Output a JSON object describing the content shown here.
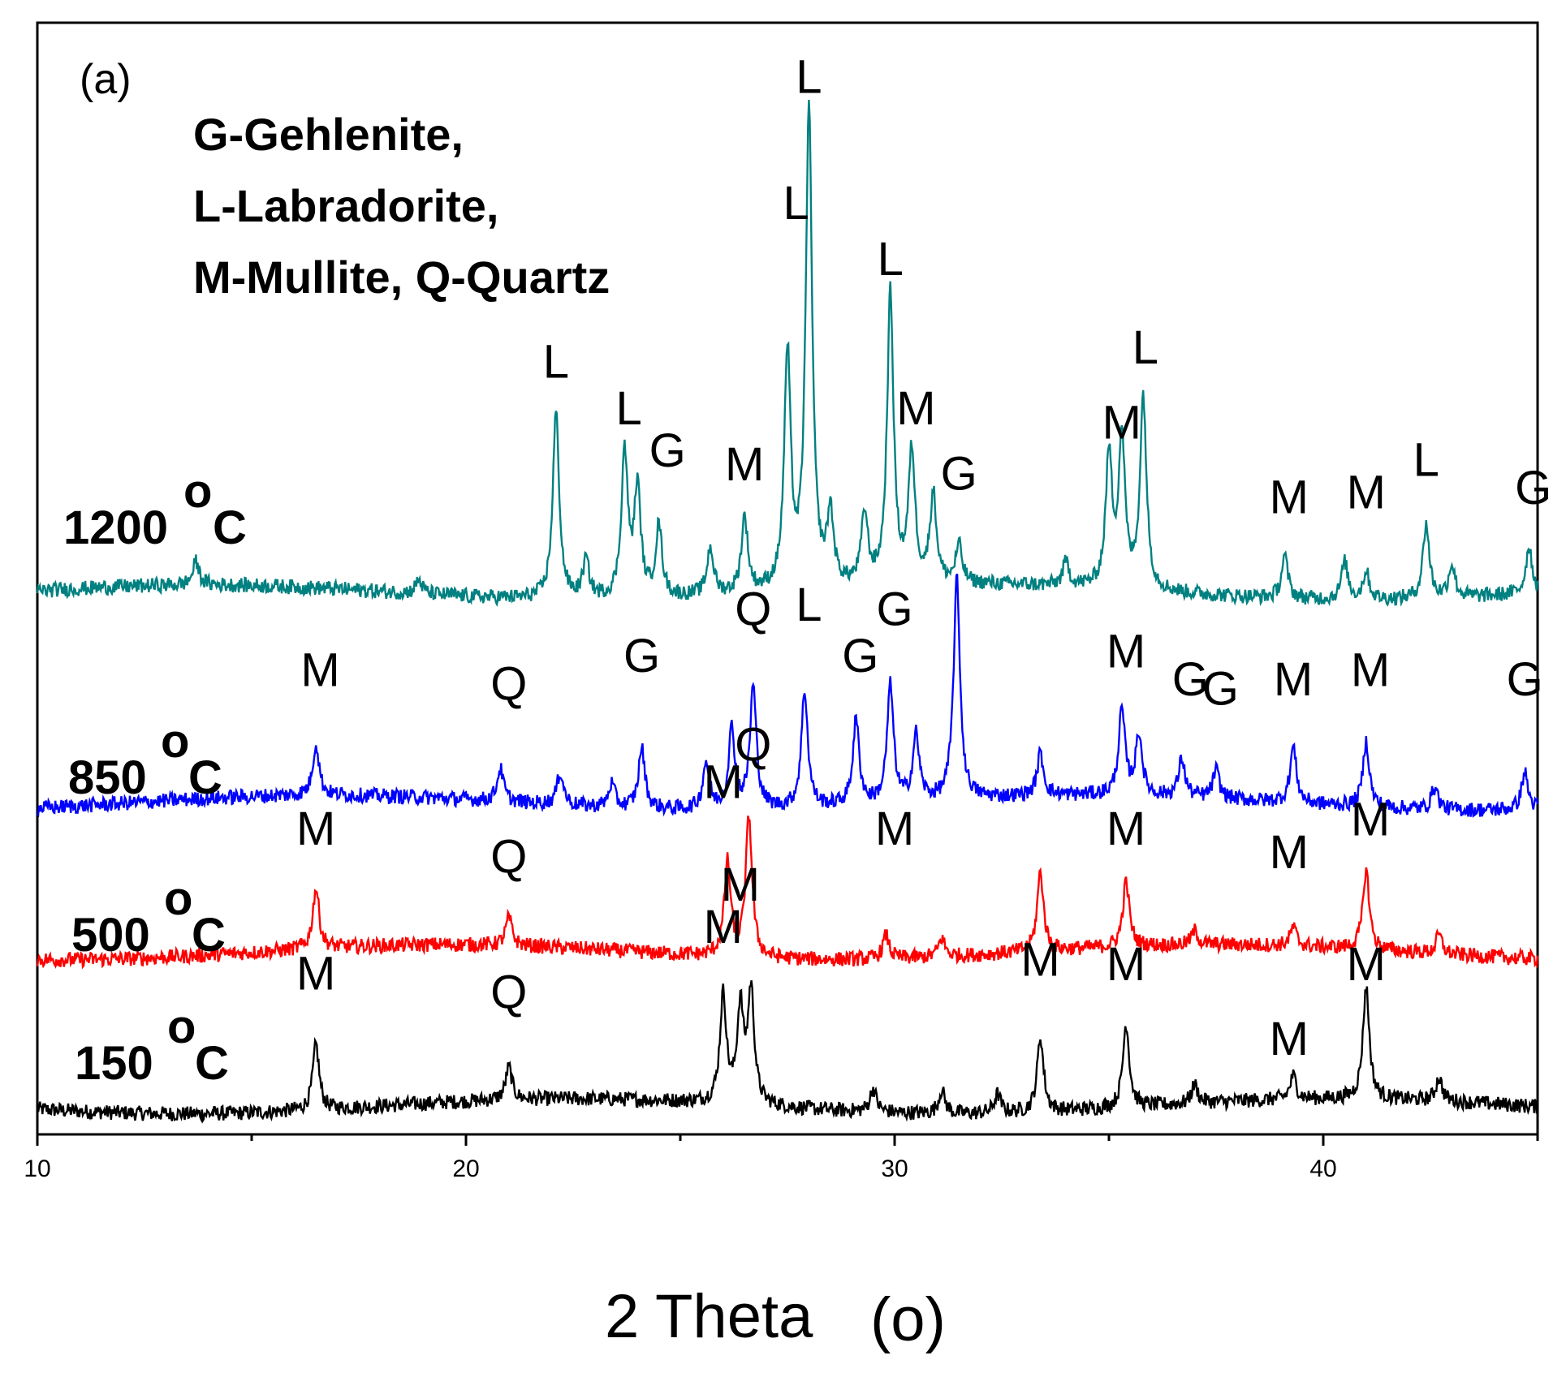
{
  "chart_data": {
    "type": "line",
    "title": "",
    "panel_label": "(a)",
    "xlabel": "2 Theta",
    "xlabel_unit": "(o)",
    "xlim": [
      10,
      45
    ],
    "x_ticks": [
      10,
      20,
      30,
      40
    ],
    "y_axis_visible": false,
    "legend": {
      "position": "top-left",
      "lines": [
        "G-Gehlenite,",
        "L-Labradorite,",
        "M-Mullite, Q-Quartz"
      ]
    },
    "series": [
      {
        "name": "150°C",
        "label_main": "150",
        "label_unit": "C",
        "label_degree": "o",
        "color": "#000000",
        "baseline": 0,
        "peaks": [
          {
            "x": 16.5,
            "h": 14
          },
          {
            "x": 21.0,
            "h": 7
          },
          {
            "x": 26.0,
            "h": 23
          },
          {
            "x": 26.4,
            "h": 20
          },
          {
            "x": 26.65,
            "h": 24
          },
          {
            "x": 29.5,
            "h": 5
          },
          {
            "x": 31.1,
            "h": 5
          },
          {
            "x": 32.4,
            "h": 4
          },
          {
            "x": 33.4,
            "h": 16
          },
          {
            "x": 35.4,
            "h": 18
          },
          {
            "x": 37.0,
            "h": 4
          },
          {
            "x": 39.3,
            "h": 5
          },
          {
            "x": 41.0,
            "h": 24
          },
          {
            "x": 42.7,
            "h": 5
          }
        ],
        "annotations": [
          {
            "text": "M",
            "x": 16.5,
            "y": 25
          },
          {
            "text": "Q",
            "x": 21.0,
            "y": 21
          },
          {
            "text": "M",
            "x": 26.0,
            "y": 35
          },
          {
            "text": "M",
            "x": 33.4,
            "y": 28
          },
          {
            "text": "M",
            "x": 35.4,
            "y": 27
          },
          {
            "text": "M",
            "x": 39.2,
            "y": 11
          },
          {
            "text": "M",
            "x": 41.0,
            "y": 27
          }
        ]
      },
      {
        "name": "500°C",
        "label_main": "500",
        "label_unit": "C",
        "label_degree": "o",
        "color": "#ff0000",
        "baseline": 33,
        "peaks": [
          {
            "x": 16.5,
            "h": 13
          },
          {
            "x": 21.0,
            "h": 6
          },
          {
            "x": 26.1,
            "h": 20
          },
          {
            "x": 26.6,
            "h": 30
          },
          {
            "x": 29.8,
            "h": 5
          },
          {
            "x": 31.1,
            "h": 4
          },
          {
            "x": 33.4,
            "h": 17
          },
          {
            "x": 35.4,
            "h": 14
          },
          {
            "x": 37.0,
            "h": 3
          },
          {
            "x": 39.3,
            "h": 4
          },
          {
            "x": 41.0,
            "h": 17
          },
          {
            "x": 42.7,
            "h": 4
          }
        ],
        "annotations": [
          {
            "text": "M",
            "x": 16.5,
            "y": 56
          },
          {
            "text": "Q",
            "x": 21.0,
            "y": 50
          },
          {
            "text": "M",
            "x": 26.0,
            "y": 66
          },
          {
            "text": "Q",
            "x": 26.7,
            "y": 74
          },
          {
            "text": "M",
            "x": 26.4,
            "y": 44
          },
          {
            "text": "M",
            "x": 30.0,
            "y": 56
          },
          {
            "text": "M",
            "x": 35.4,
            "y": 56
          },
          {
            "text": "M",
            "x": 39.2,
            "y": 51
          },
          {
            "text": "M",
            "x": 41.1,
            "y": 58
          }
        ]
      },
      {
        "name": "850°C",
        "label_main": "850",
        "label_unit": "C",
        "label_degree": "o",
        "color": "#0000ff",
        "baseline": 65,
        "peaks": [
          {
            "x": 16.5,
            "h": 11
          },
          {
            "x": 20.8,
            "h": 7
          },
          {
            "x": 22.2,
            "h": 7
          },
          {
            "x": 23.4,
            "h": 5
          },
          {
            "x": 24.1,
            "h": 13
          },
          {
            "x": 25.6,
            "h": 10
          },
          {
            "x": 26.2,
            "h": 17
          },
          {
            "x": 26.7,
            "h": 26
          },
          {
            "x": 27.9,
            "h": 25
          },
          {
            "x": 29.1,
            "h": 18
          },
          {
            "x": 29.9,
            "h": 25
          },
          {
            "x": 30.5,
            "h": 14
          },
          {
            "x": 31.45,
            "h": 47
          },
          {
            "x": 33.4,
            "h": 9
          },
          {
            "x": 35.3,
            "h": 18
          },
          {
            "x": 35.7,
            "h": 13
          },
          {
            "x": 36.7,
            "h": 8
          },
          {
            "x": 37.5,
            "h": 6
          },
          {
            "x": 39.3,
            "h": 12
          },
          {
            "x": 41.0,
            "h": 14
          },
          {
            "x": 42.6,
            "h": 5
          },
          {
            "x": 44.7,
            "h": 8
          }
        ],
        "annotations": [
          {
            "text": "M",
            "x": 16.6,
            "y": 90
          },
          {
            "text": "Q",
            "x": 21.0,
            "y": 87
          },
          {
            "text": "G",
            "x": 24.1,
            "y": 93
          },
          {
            "text": "Q",
            "x": 26.7,
            "y": 103
          },
          {
            "text": "L",
            "x": 28.0,
            "y": 104
          },
          {
            "text": "G",
            "x": 29.2,
            "y": 93
          },
          {
            "text": "G",
            "x": 30.0,
            "y": 103
          },
          {
            "text": "M",
            "x": 35.4,
            "y": 94
          },
          {
            "text": "G",
            "x": 36.9,
            "y": 88
          },
          {
            "text": "G",
            "x": 37.6,
            "y": 86
          },
          {
            "text": "M",
            "x": 39.3,
            "y": 88
          },
          {
            "text": "M",
            "x": 41.1,
            "y": 90
          },
          {
            "text": "G",
            "x": 44.7,
            "y": 88
          }
        ]
      },
      {
        "name": "1200°C",
        "label_main": "1200",
        "label_unit": "C",
        "label_degree": "o",
        "color": "#008080",
        "baseline": 110,
        "peaks": [
          {
            "x": 13.7,
            "h": 5
          },
          {
            "x": 18.9,
            "h": 3
          },
          {
            "x": 22.1,
            "h": 40
          },
          {
            "x": 22.8,
            "h": 8
          },
          {
            "x": 23.7,
            "h": 31
          },
          {
            "x": 24.0,
            "h": 23
          },
          {
            "x": 24.5,
            "h": 15
          },
          {
            "x": 25.7,
            "h": 10
          },
          {
            "x": 26.5,
            "h": 16
          },
          {
            "x": 27.5,
            "h": 50
          },
          {
            "x": 28.0,
            "h": 102
          },
          {
            "x": 28.5,
            "h": 15
          },
          {
            "x": 29.3,
            "h": 15
          },
          {
            "x": 29.9,
            "h": 62
          },
          {
            "x": 30.4,
            "h": 28
          },
          {
            "x": 30.9,
            "h": 19
          },
          {
            "x": 31.5,
            "h": 8
          },
          {
            "x": 34.0,
            "h": 5
          },
          {
            "x": 35.0,
            "h": 28
          },
          {
            "x": 35.3,
            "h": 32
          },
          {
            "x": 35.8,
            "h": 41
          },
          {
            "x": 39.1,
            "h": 9
          },
          {
            "x": 40.5,
            "h": 8
          },
          {
            "x": 41.0,
            "h": 6
          },
          {
            "x": 42.4,
            "h": 16
          },
          {
            "x": 43.0,
            "h": 7
          },
          {
            "x": 44.8,
            "h": 10
          }
        ],
        "annotations": [
          {
            "text": "L",
            "x": 22.1,
            "y": 156
          },
          {
            "text": "L",
            "x": 23.8,
            "y": 146
          },
          {
            "text": "G",
            "x": 24.7,
            "y": 137
          },
          {
            "text": "M",
            "x": 26.5,
            "y": 134
          },
          {
            "text": "L",
            "x": 27.7,
            "y": 190
          },
          {
            "text": "L",
            "x": 28.0,
            "y": 217
          },
          {
            "text": "L",
            "x": 29.9,
            "y": 178
          },
          {
            "text": "M",
            "x": 30.5,
            "y": 146
          },
          {
            "text": "G",
            "x": 31.5,
            "y": 132
          },
          {
            "text": "M",
            "x": 35.3,
            "y": 143
          },
          {
            "text": "L",
            "x": 35.85,
            "y": 159
          },
          {
            "text": "M",
            "x": 39.2,
            "y": 127
          },
          {
            "text": "M",
            "x": 41.0,
            "y": 128
          },
          {
            "text": "L",
            "x": 42.4,
            "y": 135
          },
          {
            "text": "G",
            "x": 44.9,
            "y": 129
          }
        ]
      }
    ],
    "y_range": [
      -6,
      232
    ]
  }
}
